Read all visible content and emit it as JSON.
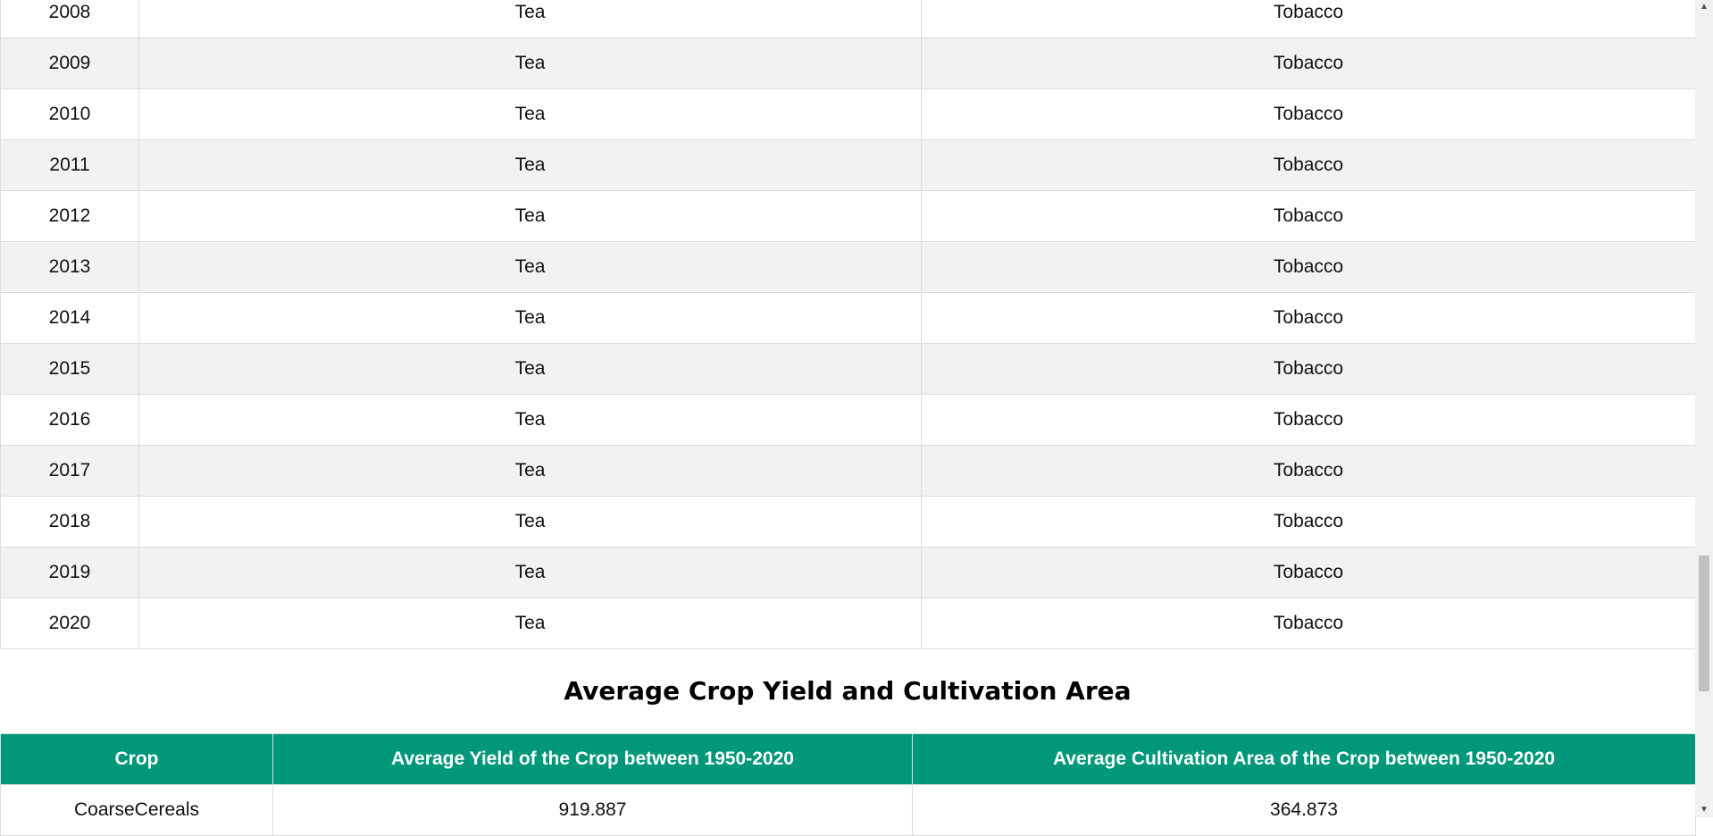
{
  "table1": {
    "rows": [
      [
        "2008",
        "Tea",
        "Tobacco"
      ],
      [
        "2009",
        "Tea",
        "Tobacco"
      ],
      [
        "2010",
        "Tea",
        "Tobacco"
      ],
      [
        "2011",
        "Tea",
        "Tobacco"
      ],
      [
        "2012",
        "Tea",
        "Tobacco"
      ],
      [
        "2013",
        "Tea",
        "Tobacco"
      ],
      [
        "2014",
        "Tea",
        "Tobacco"
      ],
      [
        "2015",
        "Tea",
        "Tobacco"
      ],
      [
        "2016",
        "Tea",
        "Tobacco"
      ],
      [
        "2017",
        "Tea",
        "Tobacco"
      ],
      [
        "2018",
        "Tea",
        "Tobacco"
      ],
      [
        "2019",
        "Tea",
        "Tobacco"
      ],
      [
        "2020",
        "Tea",
        "Tobacco"
      ]
    ]
  },
  "section": {
    "title": "Average Crop Yield and Cultivation Area"
  },
  "table2": {
    "headers": [
      "Crop",
      "Average Yield of the Crop between 1950-2020",
      "Average Cultivation Area of the Crop between 1950-2020"
    ],
    "rows": [
      [
        "CoarseCereals",
        "919.887",
        "364.873"
      ]
    ]
  },
  "colors": {
    "header_bg": "#009879",
    "stripe_bg": "#f2f2f2"
  },
  "scrollbar": {
    "up_icon": "arrow-up-icon",
    "down_icon": "arrow-down-icon"
  }
}
